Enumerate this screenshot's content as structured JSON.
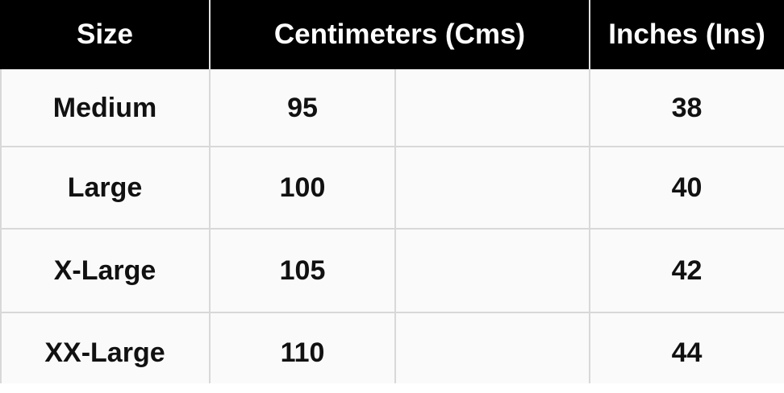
{
  "table": {
    "header": [
      "Size",
      "Centimeters (Cms)",
      "Inches (Ins)"
    ],
    "rows": [
      [
        "Medium",
        95,
        38
      ],
      [
        "Large",
        100,
        40
      ],
      [
        "X-Large",
        105,
        42
      ],
      [
        "XX-Large",
        110,
        44
      ]
    ]
  }
}
